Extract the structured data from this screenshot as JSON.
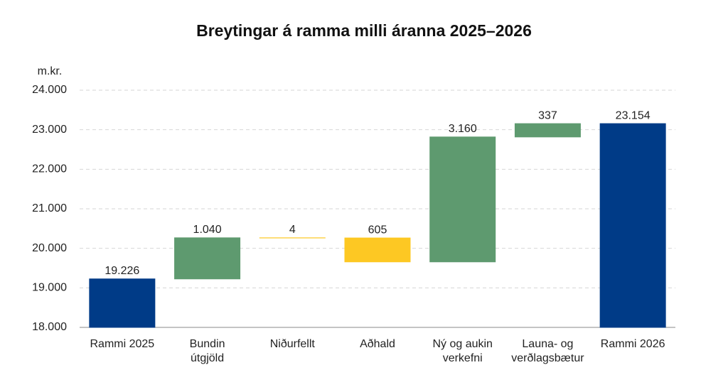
{
  "chart_data": {
    "type": "waterfall",
    "title": "Breytingar á ramma milli áranna 2025–2026",
    "y_unit_label": "m.kr.",
    "categories": [
      [
        "Rammi 2025"
      ],
      [
        "Bundin",
        "útgjöld"
      ],
      [
        "Niðurfellt"
      ],
      [
        "Aðhald"
      ],
      [
        "Ný og aukin",
        "verkefni"
      ],
      [
        "Launa- og",
        "verðlagsbætur"
      ],
      [
        "Rammi 2026"
      ]
    ],
    "measure": [
      "absolute",
      "relative",
      "relative",
      "relative",
      "relative",
      "relative",
      "absolute"
    ],
    "values": [
      19226,
      1040,
      -4,
      -605,
      3160,
      337,
      23154
    ],
    "value_labels": [
      "19.226",
      "1.040",
      "4",
      "605",
      "3.160",
      "337",
      "23.154"
    ],
    "colors": [
      "#003b87",
      "#5e9a6f",
      "#fdc823",
      "#fdc823",
      "#5e9a6f",
      "#5e9a6f",
      "#003b87"
    ],
    "ylim": [
      18000,
      24000
    ],
    "yticks": [
      {
        "value": 18000,
        "label": "18.000"
      },
      {
        "value": 19000,
        "label": "19.000"
      },
      {
        "value": 20000,
        "label": "20.000"
      },
      {
        "value": 21000,
        "label": "21.000"
      },
      {
        "value": 22000,
        "label": "22.000"
      },
      {
        "value": 23000,
        "label": "23.000"
      },
      {
        "value": 24000,
        "label": "24.000"
      }
    ],
    "grid": true
  }
}
